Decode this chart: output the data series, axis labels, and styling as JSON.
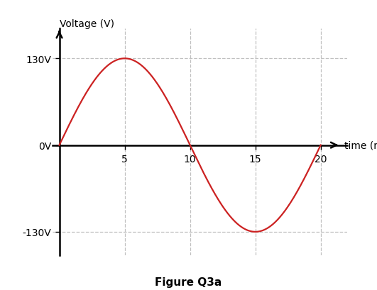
{
  "amplitude": 130,
  "frequency_hz": 50,
  "x_start_ms": 0,
  "x_end_ms": 20,
  "x_ticks": [
    5,
    10,
    15,
    20
  ],
  "y_ticks": [
    -130,
    0,
    130
  ],
  "y_tick_labels": [
    "-130V",
    "0V",
    "130V"
  ],
  "x_tick_labels": [
    "5",
    "10",
    "15",
    "20"
  ],
  "xlabel": "time (ms)",
  "ylabel": "Voltage (V)",
  "figure_label": "Figure Q3a",
  "line_color": "#cc2222",
  "background_color": "#ffffff",
  "grid_color": "#c0c0c0",
  "axis_color": "#000000",
  "line_width": 1.6,
  "ylim_data": [
    -155,
    155
  ],
  "xlim_data": [
    0,
    20
  ],
  "tick_fontsize": 10,
  "ylabel_fontsize": 10,
  "xlabel_fontsize": 10,
  "figure_label_fontsize": 11
}
